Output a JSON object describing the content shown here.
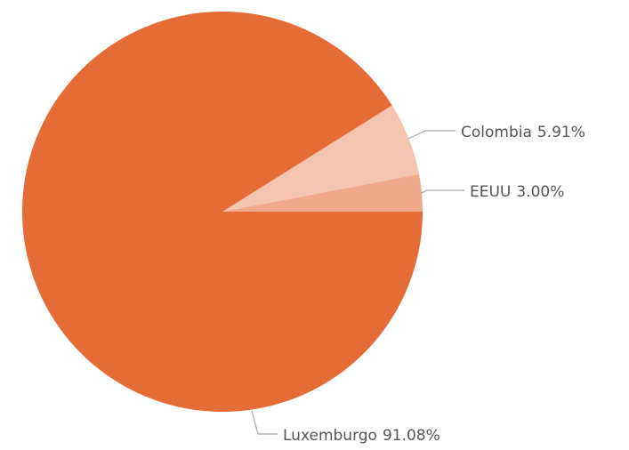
{
  "chart_data": {
    "type": "pie",
    "categories": [
      "EEUU",
      "Colombia",
      "Luxemburgo"
    ],
    "values": [
      3.0,
      5.91,
      91.08
    ],
    "value_labels": [
      "3.00%",
      "5.91%",
      "91.08%"
    ],
    "colors": [
      "#f0a98a",
      "#f5c4af",
      "#e56b37"
    ]
  }
}
